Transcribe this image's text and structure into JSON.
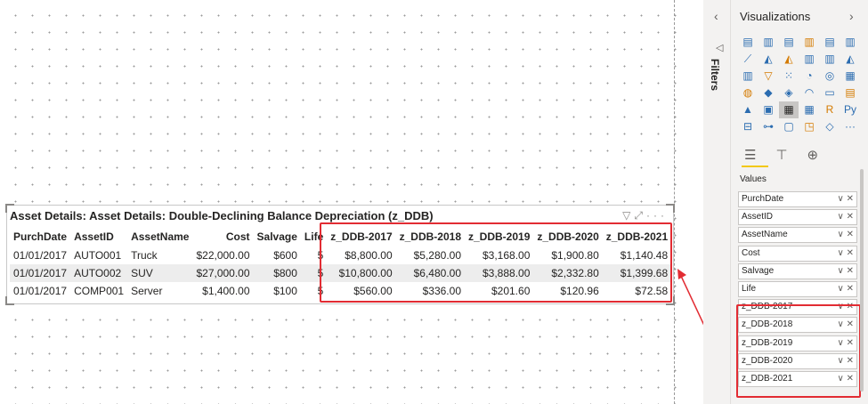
{
  "visual": {
    "title": "Asset Details: Asset Details: Double-Declining Balance Depreciation (z_DDB)",
    "header_icons": [
      "filter-icon",
      "focus-mode-icon",
      "more-options-icon"
    ],
    "columns": [
      "PurchDate",
      "AssetID",
      "AssetName",
      "Cost",
      "Salvage",
      "Life",
      "z_DDB-2017",
      "z_DDB-2018",
      "z_DDB-2019",
      "z_DDB-2020",
      "z_DDB-2021"
    ],
    "rows": [
      [
        "01/01/2017",
        "AUTO001",
        "Truck",
        "$22,000.00",
        "$600",
        "5",
        "$8,800.00",
        "$5,280.00",
        "$3,168.00",
        "$1,900.80",
        "$1,140.48"
      ],
      [
        "01/01/2017",
        "AUTO002",
        "SUV",
        "$27,000.00",
        "$800",
        "5",
        "$10,800.00",
        "$6,480.00",
        "$3,888.00",
        "$2,332.80",
        "$1,399.68"
      ],
      [
        "01/01/2017",
        "COMP001",
        "Server",
        "$1,400.00",
        "$100",
        "5",
        "$560.00",
        "$336.00",
        "$201.60",
        "$120.96",
        "$72.58"
      ]
    ]
  },
  "filters_pane": {
    "label": "Filters"
  },
  "viz_pane": {
    "title": "Visualizations",
    "values_label": "Values",
    "fields": [
      "PurchDate",
      "AssetID",
      "AssetName",
      "Cost",
      "Salvage",
      "Life",
      "z_DDB-2017",
      "z_DDB-2018",
      "z_DDB-2019",
      "z_DDB-2020",
      "z_DDB-2021"
    ],
    "visual_icons": [
      "stacked-bar-icon",
      "stacked-column-icon",
      "clustered-bar-icon",
      "clustered-column-icon",
      "100-bar-icon",
      "100-column-icon",
      "line-chart-icon",
      "area-chart-icon",
      "stacked-area-icon",
      "line-column-icon",
      "line-clustered-icon",
      "ribbon-chart-icon",
      "waterfall-icon",
      "funnel-icon",
      "scatter-icon",
      "pie-icon",
      "donut-icon",
      "treemap-icon",
      "map-icon",
      "filled-map-icon",
      "shape-map-icon",
      "gauge-icon",
      "card-icon",
      "multi-row-card-icon",
      "kpi-icon",
      "slicer-icon",
      "table-icon",
      "matrix-icon",
      "r-visual-icon",
      "python-visual-icon",
      "key-influencers-icon",
      "decomposition-tree-icon",
      "qa-icon",
      "smart-narrative-icon",
      "diamond-icon",
      "more-icon"
    ],
    "python_glyph": "Py",
    "r_glyph": "R",
    "more_glyph": "···"
  },
  "colors": {
    "highlight": "#e22c33",
    "accent": "#f2c811",
    "icon_blue": "#2b6cb0"
  }
}
